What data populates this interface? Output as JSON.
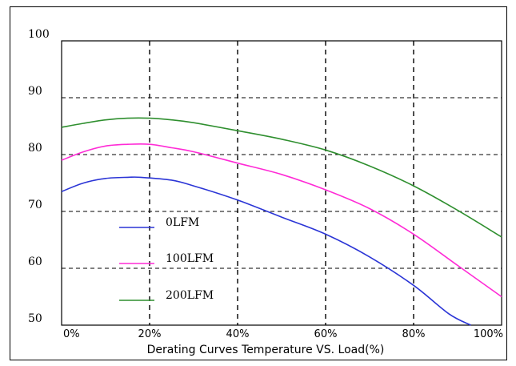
{
  "chart_data": {
    "type": "line",
    "title": "",
    "xlabel": "Derating Curves Temperature  VS. Load(%)",
    "ylabel": "",
    "xlim": [
      0,
      100
    ],
    "ylim": [
      50,
      100
    ],
    "x_ticks": [
      0,
      20,
      40,
      60,
      80,
      100
    ],
    "x_tick_labels": [
      "0%",
      "20%",
      "40%",
      "60%",
      "80%",
      "100%"
    ],
    "y_ticks": [
      50,
      60,
      70,
      80,
      90,
      100
    ],
    "y_tick_labels": [
      "50",
      "60",
      "70",
      "80",
      "90",
      "100"
    ],
    "grid": "dashed",
    "legend_position": "lower-left",
    "series": [
      {
        "name": "0LFM",
        "color": "#2b35d6",
        "x": [
          0,
          5,
          10,
          15,
          18,
          25,
          30,
          40,
          50,
          60,
          70,
          80,
          88,
          93
        ],
        "y": [
          73.5,
          75,
          75.8,
          76,
          76,
          75.5,
          74.5,
          72,
          69,
          66,
          62,
          57,
          52,
          50
        ]
      },
      {
        "name": "100LFM",
        "color": "#ff2bd6",
        "x": [
          0,
          5,
          10,
          15,
          20,
          25,
          30,
          40,
          50,
          60,
          70,
          80,
          90,
          100
        ],
        "y": [
          79,
          80.5,
          81.5,
          81.8,
          81.8,
          81.2,
          80.5,
          78.5,
          76.5,
          73.8,
          70.5,
          66,
          60.5,
          55
        ]
      },
      {
        "name": "200LFM",
        "color": "#2f8f2f",
        "x": [
          0,
          5,
          10,
          15,
          20,
          25,
          30,
          40,
          50,
          60,
          70,
          80,
          90,
          100
        ],
        "y": [
          84.8,
          85.5,
          86.1,
          86.4,
          86.4,
          86.1,
          85.6,
          84.2,
          82.7,
          80.8,
          78,
          74.5,
          70.2,
          65.5
        ]
      }
    ]
  }
}
